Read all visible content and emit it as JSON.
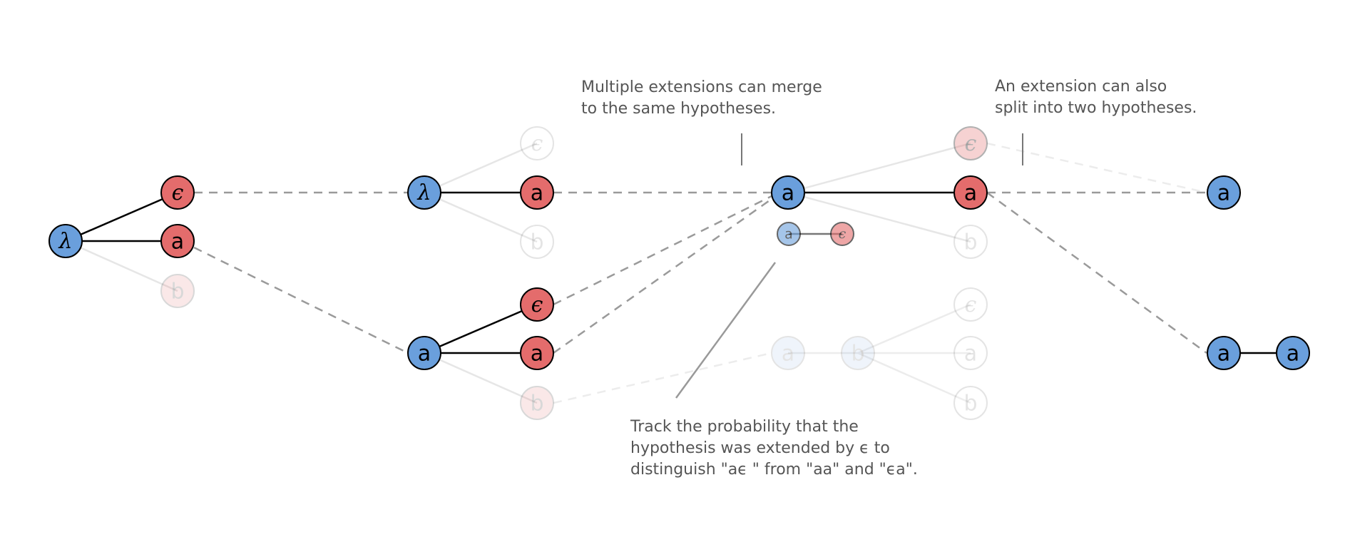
{
  "symbols": {
    "lambda": "λ",
    "epsilon": "ϵ",
    "a": "a",
    "b": "b"
  },
  "colors": {
    "blue_node": "#6a9fdc",
    "red_node": "#e46c6c",
    "solid_edge": "#000000",
    "faded_edge": "#e0e0e0",
    "dashed_edge": "#9a9a9a",
    "annotation_text": "#555555"
  },
  "annotations": {
    "merge": [
      "Multiple extensions can merge",
      "to the same hypotheses."
    ],
    "split": [
      "An extension can also",
      "split into two hypotheses."
    ],
    "track": [
      "Track the probability that the",
      "hypothesis was extended by ϵ to",
      "distinguish \"aϵ \" from \"aa\" and \"ϵa\"."
    ]
  }
}
